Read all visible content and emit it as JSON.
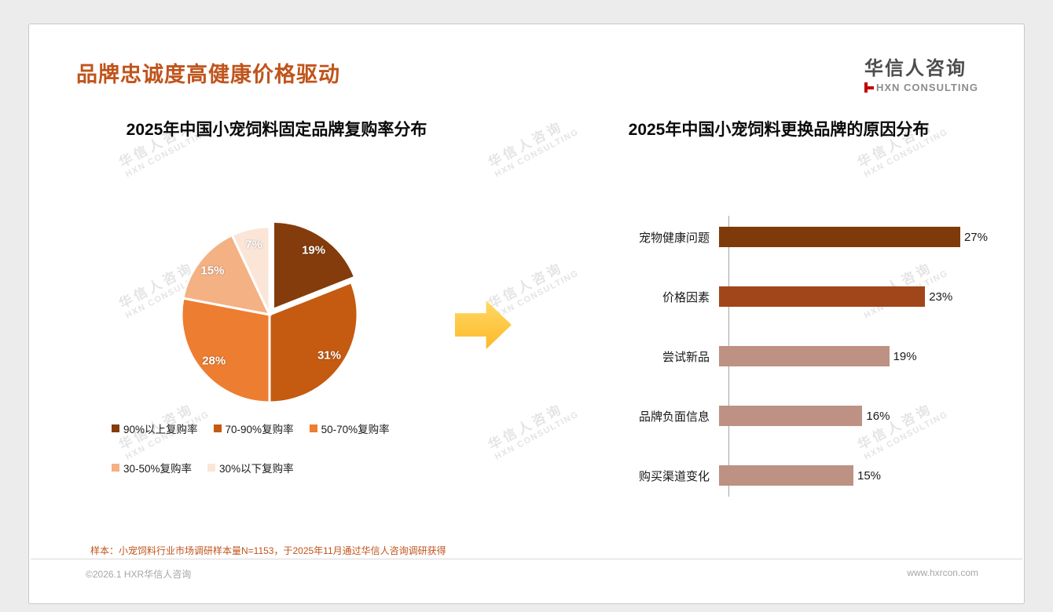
{
  "header": {
    "title": "品牌忠诚度高健康价格驱动",
    "logo_cn": "华信人咨询",
    "logo_en": "HXN CONSULTING"
  },
  "watermark": {
    "line1": "华信人咨询",
    "line2": "HXN CONSULTING"
  },
  "chart_data": [
    {
      "type": "pie",
      "title": "2025年中国小宠饲料固定品牌复购率分布",
      "labels": [
        "90%以上复购率",
        "70-90%复购率",
        "50-70%复购率",
        "30-50%复购率",
        "30%以下复购率"
      ],
      "values": [
        19,
        31,
        28,
        15,
        7
      ],
      "data_labels": [
        "19%",
        "31%",
        "28%",
        "15%",
        "7%"
      ],
      "colors": [
        "#843C0C",
        "#C55A11",
        "#ED7D31",
        "#F4B183",
        "#FBE5D6"
      ],
      "start_angle": "top",
      "direction": "clockwise",
      "legend_position": "bottom"
    },
    {
      "type": "bar",
      "orientation": "horizontal",
      "title": "2025年中国小宠饲料更换品牌的原因分布",
      "categories": [
        "宠物健康问题",
        "价格因素",
        "尝试新品",
        "品牌负面信息",
        "购买渠道变化"
      ],
      "values": [
        27,
        23,
        19,
        16,
        15
      ],
      "value_labels": [
        "27%",
        "23%",
        "19%",
        "16%",
        "15%"
      ],
      "bar_colors": [
        "#7E3B09",
        "#A0461A",
        "#BD9183",
        "#BD9183",
        "#BD9183"
      ],
      "xlim": [
        0,
        30
      ],
      "grid": false
    }
  ],
  "footer": {
    "note": "样本：小宠饲料行业市场调研样本量N=1153，于2025年11月通过华信人咨询调研获得",
    "left": "©2026.1 HXR华信人咨询",
    "right": "www.hxrcon.com"
  },
  "colors": {
    "title": "#C0541C",
    "arrow": "#FDB827",
    "logo_mark": "#C00000",
    "axis": "#a6a6a6"
  }
}
